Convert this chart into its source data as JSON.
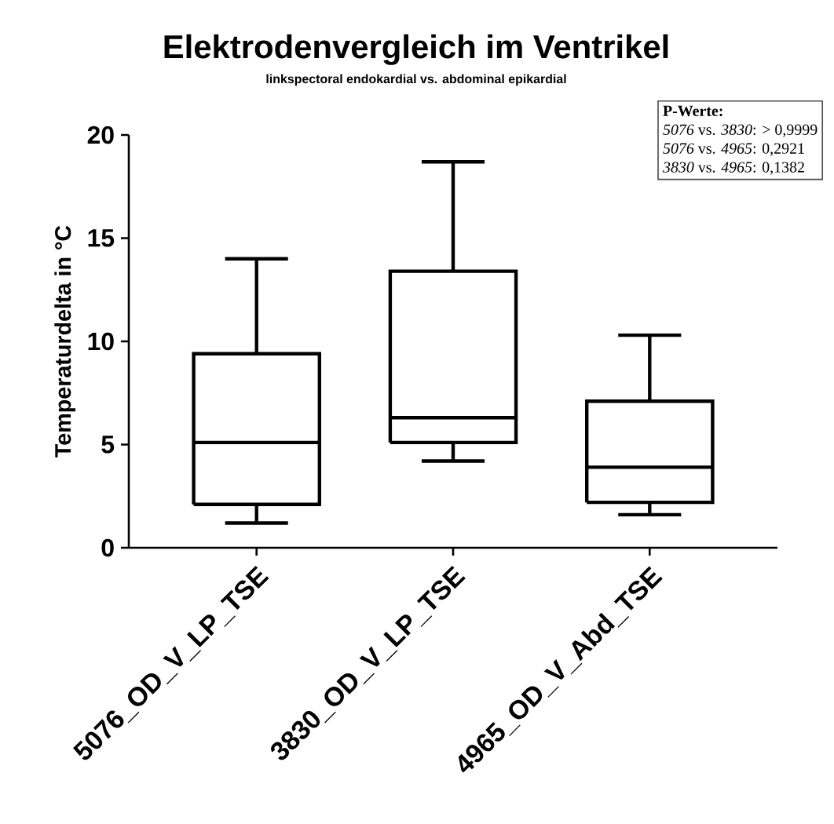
{
  "chart_data": {
    "type": "box",
    "title": "Elektrodenvergleich im Ventrikel",
    "subtitle": "linkspectoral endokardial vs. abdominal epikardial",
    "ylabel": "Temperaturdelta in °C",
    "categories": [
      "5076_OD_V_LP_TSE",
      "3830_OD_V_LP_TSE",
      "4965_OD_V_Abd_TSE"
    ],
    "boxes": [
      {
        "low": 1.2,
        "q1": 2.1,
        "median": 5.1,
        "q3": 9.4,
        "high": 14.0
      },
      {
        "low": 4.2,
        "q1": 5.1,
        "median": 6.3,
        "q3": 13.4,
        "high": 18.7
      },
      {
        "low": 1.6,
        "q1": 2.2,
        "median": 3.9,
        "q3": 7.1,
        "high": 10.3
      }
    ],
    "color": "#000000",
    "ylim": [
      0,
      20
    ],
    "yticks": [
      0,
      5,
      10,
      15,
      20
    ],
    "grid": false,
    "annotations": [
      "**P-Werte:**",
      "*5076* vs. *3830*: > 0,9999",
      "*5076* vs. *4965*: 0,2921",
      "*3830* vs. *4965*: 0,1382"
    ]
  }
}
